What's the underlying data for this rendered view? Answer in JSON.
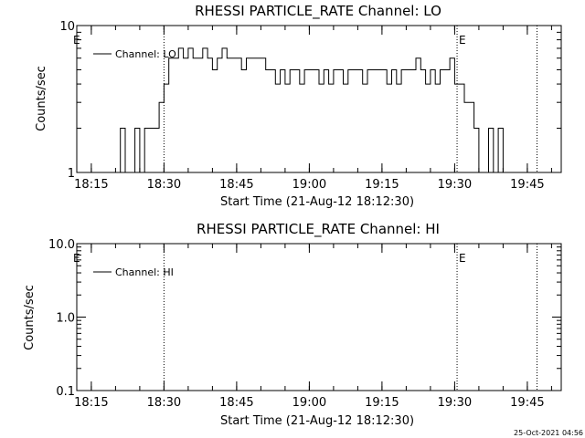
{
  "footer": {
    "timestamp": "25-Oct-2021 04:56"
  },
  "chart_data": [
    {
      "type": "line",
      "title": "RHESSI PARTICLE_RATE Channel: LO",
      "xlabel": "Start Time (21-Aug-12 18:12:30)",
      "ylabel": "Counts/sec",
      "yscale": "log",
      "ylim": [
        1,
        10
      ],
      "ytick_labels": [
        "1",
        "10"
      ],
      "xlim": [
        "18:12:30",
        "19:52:30"
      ],
      "xtick_labels": [
        "18:15",
        "18:30",
        "18:45",
        "19:00",
        "19:15",
        "19:30",
        "19:45"
      ],
      "legend": {
        "label": "Channel: LO",
        "placement": "top-left"
      },
      "markers": [
        {
          "time": "18:30",
          "label": ""
        },
        {
          "time": "19:30.5",
          "label": "E"
        },
        {
          "time": "19:47",
          "label": ""
        }
      ],
      "left_marker_label": "E",
      "series": [
        {
          "name": "Channel: LO",
          "x_minutes_from_18_00": [
            20,
            21,
            22,
            23,
            24,
            25,
            26,
            27,
            28,
            29,
            30,
            31,
            32,
            33,
            34,
            35,
            36,
            37,
            38,
            39,
            40,
            41,
            42,
            43,
            44,
            45,
            46,
            47,
            48,
            49,
            50,
            51,
            52,
            53,
            54,
            55,
            56,
            57,
            58,
            59,
            60,
            61,
            62,
            63,
            64,
            65,
            66,
            67,
            68,
            69,
            70,
            71,
            72,
            73,
            74,
            75,
            76,
            77,
            78,
            79,
            80,
            81,
            82,
            83,
            84,
            85,
            86,
            87,
            88,
            89,
            90,
            91,
            92,
            93,
            94,
            95,
            96,
            97,
            98,
            99,
            100
          ],
          "values": [
            1,
            2,
            1,
            1,
            2,
            1,
            2,
            2,
            2,
            3,
            4,
            6,
            6,
            7,
            6,
            7,
            6,
            6,
            7,
            6,
            5,
            6,
            7,
            6,
            6,
            6,
            5,
            6,
            6,
            6,
            6,
            5,
            5,
            4,
            5,
            4,
            5,
            5,
            4,
            5,
            5,
            5,
            4,
            5,
            4,
            5,
            5,
            4,
            5,
            5,
            5,
            4,
            5,
            5,
            5,
            5,
            4,
            5,
            4,
            5,
            5,
            5,
            6,
            5,
            4,
            5,
            4,
            5,
            5,
            6,
            4,
            4,
            3,
            3,
            2,
            1,
            1,
            2,
            1,
            2,
            1
          ]
        }
      ]
    },
    {
      "type": "line",
      "title": "RHESSI PARTICLE_RATE Channel: HI",
      "xlabel": "Start Time (21-Aug-12 18:12:30)",
      "ylabel": "Counts/sec",
      "yscale": "log",
      "ylim": [
        0.1,
        10
      ],
      "ytick_labels": [
        "0.1",
        "1.0",
        "10.0"
      ],
      "xlim": [
        "18:12:30",
        "19:52:30"
      ],
      "xtick_labels": [
        "18:15",
        "18:30",
        "18:45",
        "19:00",
        "19:15",
        "19:30",
        "19:45"
      ],
      "legend": {
        "label": "Channel: HI",
        "placement": "top-left"
      },
      "markers": [
        {
          "time": "18:30",
          "label": ""
        },
        {
          "time": "19:30.5",
          "label": "E"
        },
        {
          "time": "19:47",
          "label": ""
        }
      ],
      "left_marker_label": "E",
      "series": [
        {
          "name": "Channel: HI",
          "x_minutes_from_18_00": [],
          "values": []
        }
      ]
    }
  ]
}
